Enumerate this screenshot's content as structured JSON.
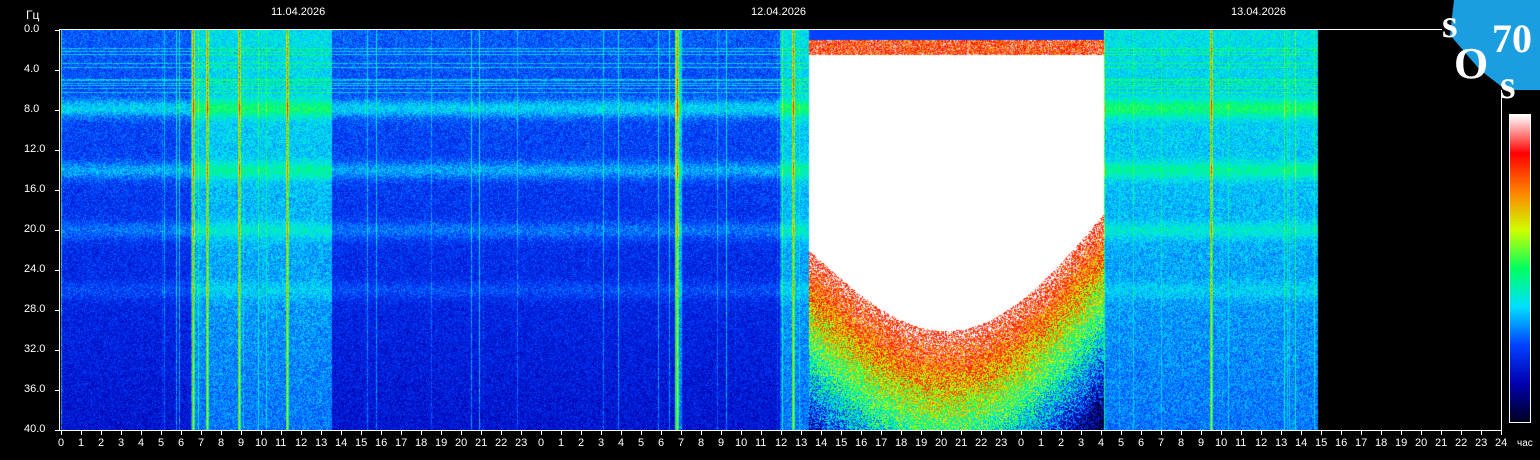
{
  "chart_data": {
    "type": "heatmap",
    "ylabel": "Гц",
    "xlabel": "час",
    "ylim": [
      0,
      40
    ],
    "xlim_hours": [
      0,
      72
    ],
    "y_ticks": [
      "0.0",
      "4.0",
      "8.0",
      "12.0",
      "16.0",
      "20.0",
      "24.0",
      "28.0",
      "32.0",
      "36.0",
      "40.0"
    ],
    "date_labels": [
      {
        "label": "11.04.2026",
        "hour": 12
      },
      {
        "label": "12.04.2026",
        "hour": 36
      },
      {
        "label": "13.04.2026",
        "hour": 60
      }
    ],
    "x_ticks": [
      "0",
      "1",
      "2",
      "3",
      "4",
      "5",
      "6",
      "7",
      "8",
      "9",
      "10",
      "11",
      "12",
      "13",
      "14",
      "15",
      "16",
      "17",
      "18",
      "19",
      "20",
      "21",
      "22",
      "23",
      "0",
      "1",
      "2",
      "3",
      "4",
      "5",
      "6",
      "7",
      "8",
      "9",
      "10",
      "11",
      "12",
      "13",
      "14",
      "15",
      "16",
      "17",
      "18",
      "19",
      "20",
      "21",
      "22",
      "23",
      "0",
      "1",
      "2",
      "3",
      "4",
      "5",
      "6",
      "7",
      "8",
      "9",
      "10",
      "11",
      "12",
      "13",
      "14",
      "15",
      "16",
      "17",
      "18",
      "19",
      "20",
      "21",
      "22",
      "23",
      "24"
    ],
    "data_end_hour": 62.8,
    "resonance_bands_hz": [
      7.8,
      14.0,
      20.0,
      26.0
    ],
    "active_periods_hours": [
      [
        6.5,
        13.5
      ],
      [
        30.7,
        31.0
      ],
      [
        36.0,
        37.4
      ],
      [
        52.1,
        62.8
      ]
    ],
    "saturated_event_hours": [
      37.4,
      52.1
    ],
    "vertical_bursts_hours": [
      6.6,
      7.3,
      8.9,
      11.3,
      30.8,
      36.6,
      52.1,
      57.5,
      63.0
    ],
    "colorscale": [
      "#000020",
      "#0000b0",
      "#0040ff",
      "#00e0ff",
      "#00ff60",
      "#d0ff00",
      "#ff8000",
      "#ff0000",
      "#ffffff"
    ]
  },
  "logo": {
    "text": "SOS 70",
    "color": "#1a9ee0"
  }
}
